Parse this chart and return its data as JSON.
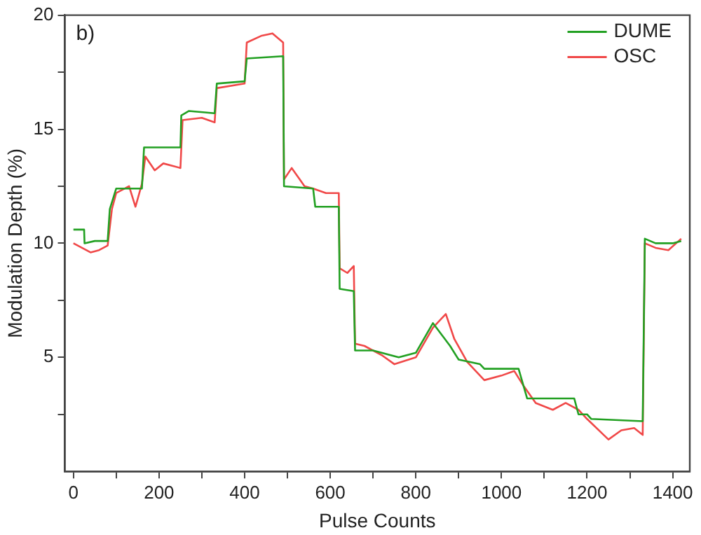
{
  "chart_data": {
    "type": "line",
    "xlabel": "Pulse Counts",
    "ylabel": "Modulation Depth (%)",
    "annotations": [
      "b)"
    ],
    "xlim": [
      -20,
      1440
    ],
    "xticks": [
      0,
      {
        "value": 100,
        "label": null
      },
      200,
      {
        "value": 300,
        "label": null
      },
      400,
      {
        "value": 500,
        "label": null
      },
      600,
      {
        "value": 700,
        "label": null
      },
      800,
      {
        "value": 900,
        "label": null
      },
      1000,
      {
        "value": 1100,
        "label": null
      },
      1200,
      {
        "value": 1300,
        "label": null
      },
      1400
    ],
    "ylim": [
      0,
      20
    ],
    "yticks": [
      {
        "value": 2.5,
        "label": null
      },
      5,
      {
        "value": 7.5,
        "label": null
      },
      10,
      {
        "value": 12.5,
        "label": null
      },
      15,
      {
        "value": 17.5,
        "label": null
      },
      20
    ],
    "grid": false,
    "legend": "top right",
    "marker": "none",
    "line_style": "solid",
    "series": [
      {
        "name": "DUME",
        "color": "#22a022",
        "x": [
          0,
          25,
          26,
          50,
          80,
          85,
          100,
          160,
          165,
          250,
          252,
          270,
          330,
          335,
          400,
          405,
          490,
          492,
          560,
          565,
          620,
          622,
          655,
          658,
          700,
          760,
          800,
          840,
          880,
          900,
          950,
          960,
          1040,
          1060,
          1100,
          1170,
          1180,
          1200,
          1210,
          1330,
          1335,
          1360,
          1400,
          1420
        ],
        "values": [
          10.6,
          10.6,
          10.0,
          10.1,
          10.1,
          11.5,
          12.4,
          12.4,
          14.2,
          14.2,
          15.6,
          15.8,
          15.7,
          17.0,
          17.1,
          18.1,
          18.2,
          12.5,
          12.4,
          11.6,
          11.6,
          8.0,
          7.9,
          5.3,
          5.3,
          5.0,
          5.2,
          6.5,
          5.5,
          4.9,
          4.7,
          4.5,
          4.5,
          3.2,
          3.2,
          3.2,
          2.5,
          2.5,
          2.3,
          2.2,
          10.2,
          10.0,
          10.0,
          10.1
        ]
      },
      {
        "name": "OSC",
        "color": "#f04848",
        "x": [
          0,
          20,
          40,
          60,
          80,
          90,
          100,
          130,
          145,
          160,
          168,
          190,
          210,
          250,
          255,
          300,
          330,
          335,
          400,
          405,
          440,
          465,
          490,
          492,
          510,
          540,
          560,
          590,
          620,
          622,
          640,
          655,
          658,
          680,
          720,
          750,
          800,
          840,
          870,
          890,
          920,
          960,
          1000,
          1030,
          1050,
          1080,
          1120,
          1150,
          1180,
          1200,
          1250,
          1280,
          1310,
          1330,
          1335,
          1360,
          1390,
          1420
        ],
        "values": [
          10.0,
          9.8,
          9.6,
          9.7,
          9.9,
          11.5,
          12.2,
          12.5,
          11.6,
          12.6,
          13.8,
          13.2,
          13.5,
          13.3,
          15.4,
          15.5,
          15.3,
          16.8,
          17.0,
          18.8,
          19.1,
          19.2,
          18.8,
          12.8,
          13.3,
          12.5,
          12.4,
          12.2,
          12.2,
          8.9,
          8.7,
          9.0,
          5.6,
          5.5,
          5.1,
          4.7,
          5.0,
          6.3,
          6.9,
          5.8,
          4.8,
          4.0,
          4.2,
          4.4,
          3.8,
          3.0,
          2.7,
          3.0,
          2.7,
          2.3,
          1.4,
          1.8,
          1.9,
          1.6,
          10.0,
          9.8,
          9.7,
          10.2
        ]
      }
    ]
  }
}
